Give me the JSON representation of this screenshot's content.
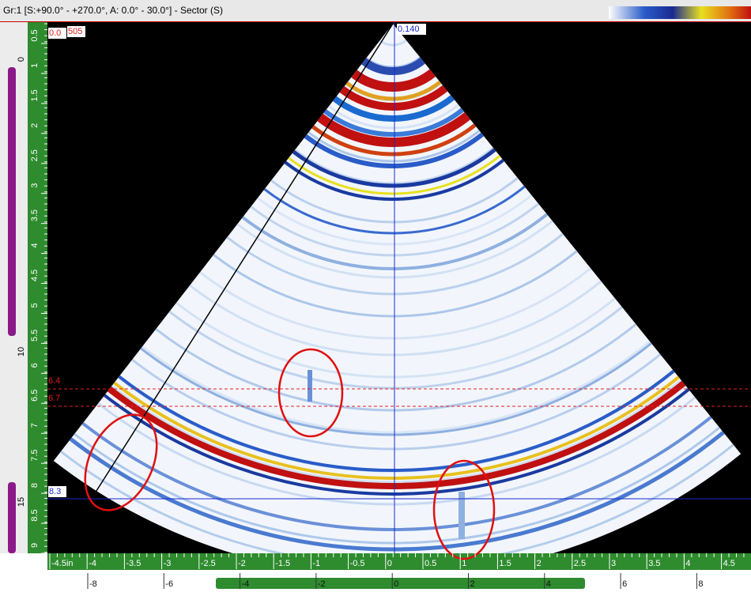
{
  "title_bar": {
    "title": "Gr:1 [S:+90.0° - +270.0°, A: 0.0° - 30.0°] - Sector (S)"
  },
  "scan": {
    "amplitude_readout": "0.0",
    "gain_readout": "505",
    "position_readout": "0.140",
    "ref_line_1": "6.4",
    "ref_line_2": "6.7",
    "measure_line": "8.3"
  },
  "rulers": {
    "depth_major": [
      "0",
      "10",
      "15"
    ],
    "depth": [
      "0.5",
      "1",
      "1.5",
      "2",
      "2.5",
      "3",
      "3.5",
      "4",
      "4.5",
      "5",
      "5.5",
      "6",
      "6.5",
      "7",
      "7.5",
      "8",
      "8.5",
      "9"
    ],
    "index_in": [
      "-4.5in",
      "-4",
      "-3.5",
      "-3",
      "-2.5",
      "-2",
      "-1.5",
      "-1",
      "-0.5",
      "0",
      "0.5",
      "1",
      "1.5",
      "2",
      "2.5",
      "3",
      "3.5",
      "4",
      "4.5"
    ],
    "index_mm": [
      "-8",
      "-6",
      "-4",
      "-2",
      "0",
      "2",
      "4",
      "6",
      "8"
    ]
  }
}
